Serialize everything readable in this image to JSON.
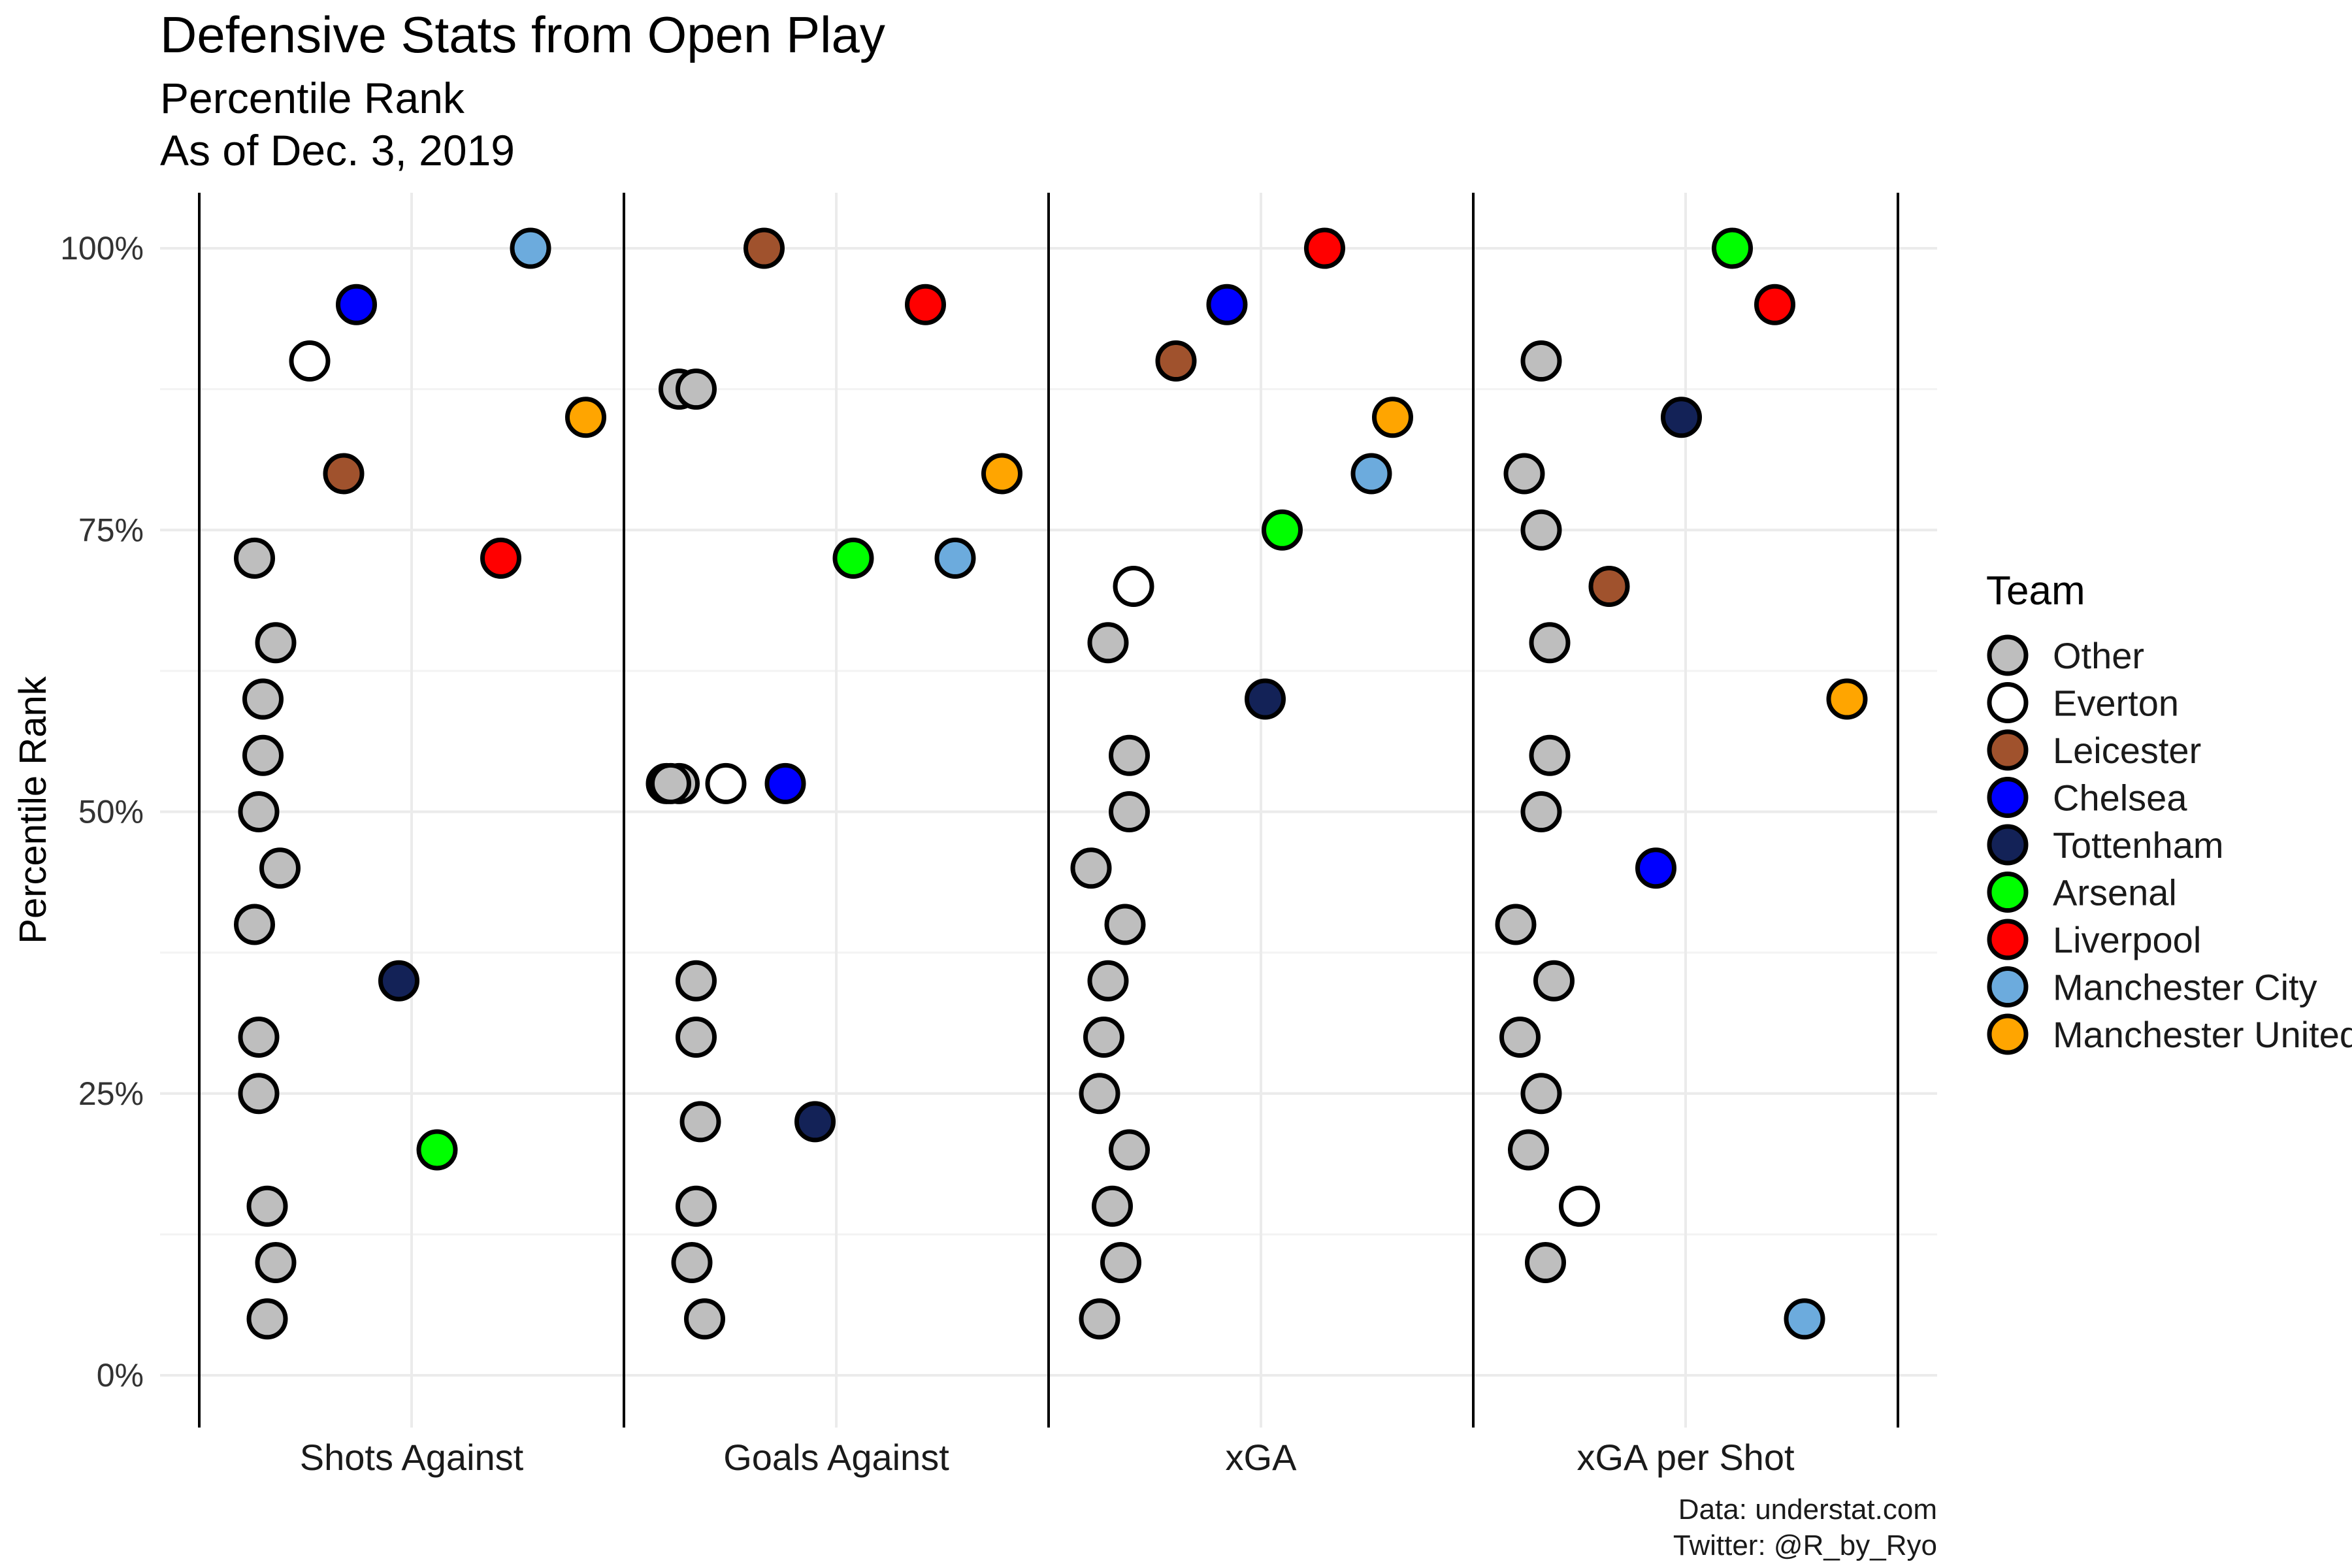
{
  "chart_data": {
    "type": "scatter",
    "title": "Defensive Stats from Open Play",
    "subtitle_lines": [
      "Percentile Rank",
      "As of Dec. 3, 2019"
    ],
    "ylabel": "Percentile Rank",
    "ylim": [
      0,
      100
    ],
    "y_ticks": [
      "0%",
      "25%",
      "50%",
      "75%",
      "100%"
    ],
    "categories": [
      "Shots Against",
      "Goals Against",
      "xGA",
      "xGA per Shot"
    ],
    "legend": {
      "title": "Team",
      "placement": "right",
      "teams": [
        {
          "name": "Other",
          "color": "#bebebe"
        },
        {
          "name": "Everton",
          "color": "#ffffff"
        },
        {
          "name": "Leicester",
          "color": "#a0522d"
        },
        {
          "name": "Chelsea",
          "color": "#0000ff"
        },
        {
          "name": "Tottenham",
          "color": "#132257"
        },
        {
          "name": "Arsenal",
          "color": "#00ff00"
        },
        {
          "name": "Liverpool",
          "color": "#ff0000"
        },
        {
          "name": "Manchester City",
          "color": "#6cabdd"
        },
        {
          "name": "Manchester United",
          "color": "#ffa500"
        }
      ]
    },
    "points": [
      {
        "category": "Shots Against",
        "team": "Manchester City",
        "y": 100,
        "jitter": 0.28
      },
      {
        "category": "Shots Against",
        "team": "Chelsea",
        "y": 95,
        "jitter": -0.13
      },
      {
        "category": "Shots Against",
        "team": "Everton",
        "y": 90,
        "jitter": -0.24
      },
      {
        "category": "Shots Against",
        "team": "Manchester United",
        "y": 85,
        "jitter": 0.41
      },
      {
        "category": "Shots Against",
        "team": "Leicester",
        "y": 80,
        "jitter": -0.16
      },
      {
        "category": "Shots Against",
        "team": "Other",
        "y": 72.5,
        "jitter": -0.37
      },
      {
        "category": "Shots Against",
        "team": "Liverpool",
        "y": 72.5,
        "jitter": 0.21
      },
      {
        "category": "Shots Against",
        "team": "Other",
        "y": 65,
        "jitter": -0.32
      },
      {
        "category": "Shots Against",
        "team": "Other",
        "y": 60,
        "jitter": -0.35
      },
      {
        "category": "Shots Against",
        "team": "Other",
        "y": 55,
        "jitter": -0.35
      },
      {
        "category": "Shots Against",
        "team": "Other",
        "y": 50,
        "jitter": -0.36
      },
      {
        "category": "Shots Against",
        "team": "Other",
        "y": 45,
        "jitter": -0.31
      },
      {
        "category": "Shots Against",
        "team": "Other",
        "y": 40,
        "jitter": -0.37
      },
      {
        "category": "Shots Against",
        "team": "Tottenham",
        "y": 35,
        "jitter": -0.03
      },
      {
        "category": "Shots Against",
        "team": "Other",
        "y": 30,
        "jitter": -0.36
      },
      {
        "category": "Shots Against",
        "team": "Other",
        "y": 25,
        "jitter": -0.36
      },
      {
        "category": "Shots Against",
        "team": "Arsenal",
        "y": 20,
        "jitter": 0.06
      },
      {
        "category": "Shots Against",
        "team": "Other",
        "y": 15,
        "jitter": -0.34
      },
      {
        "category": "Shots Against",
        "team": "Other",
        "y": 10,
        "jitter": -0.32
      },
      {
        "category": "Shots Against",
        "team": "Other",
        "y": 5,
        "jitter": -0.34
      },
      {
        "category": "Goals Against",
        "team": "Leicester",
        "y": 100,
        "jitter": -0.17
      },
      {
        "category": "Goals Against",
        "team": "Liverpool",
        "y": 95,
        "jitter": 0.21
      },
      {
        "category": "Goals Against",
        "team": "Other",
        "y": 87.5,
        "jitter": -0.37
      },
      {
        "category": "Goals Against",
        "team": "Other",
        "y": 87.5,
        "jitter": -0.33
      },
      {
        "category": "Goals Against",
        "team": "Manchester United",
        "y": 80,
        "jitter": 0.39
      },
      {
        "category": "Goals Against",
        "team": "Arsenal",
        "y": 72.5,
        "jitter": 0.04
      },
      {
        "category": "Goals Against",
        "team": "Manchester City",
        "y": 72.5,
        "jitter": 0.28
      },
      {
        "category": "Goals Against",
        "team": "Other",
        "y": 52.5,
        "jitter": -0.4
      },
      {
        "category": "Goals Against",
        "team": "Other",
        "y": 52.5,
        "jitter": -0.37
      },
      {
        "category": "Goals Against",
        "team": "Other",
        "y": 52.5,
        "jitter": -0.39
      },
      {
        "category": "Goals Against",
        "team": "Everton",
        "y": 52.5,
        "jitter": -0.26
      },
      {
        "category": "Goals Against",
        "team": "Chelsea",
        "y": 52.5,
        "jitter": -0.12
      },
      {
        "category": "Goals Against",
        "team": "Other",
        "y": 35,
        "jitter": -0.33
      },
      {
        "category": "Goals Against",
        "team": "Other",
        "y": 30,
        "jitter": -0.33
      },
      {
        "category": "Goals Against",
        "team": "Other",
        "y": 22.5,
        "jitter": -0.32
      },
      {
        "category": "Goals Against",
        "team": "Tottenham",
        "y": 22.5,
        "jitter": -0.05
      },
      {
        "category": "Goals Against",
        "team": "Other",
        "y": 15,
        "jitter": -0.33
      },
      {
        "category": "Goals Against",
        "team": "Other",
        "y": 10,
        "jitter": -0.34
      },
      {
        "category": "Goals Against",
        "team": "Other",
        "y": 5,
        "jitter": -0.31
      },
      {
        "category": "xGA",
        "team": "Liverpool",
        "y": 100,
        "jitter": 0.15
      },
      {
        "category": "xGA",
        "team": "Chelsea",
        "y": 95,
        "jitter": -0.08
      },
      {
        "category": "xGA",
        "team": "Leicester",
        "y": 90,
        "jitter": -0.2
      },
      {
        "category": "xGA",
        "team": "Manchester United",
        "y": 85,
        "jitter": 0.31
      },
      {
        "category": "xGA",
        "team": "Manchester City",
        "y": 80,
        "jitter": 0.26
      },
      {
        "category": "xGA",
        "team": "Arsenal",
        "y": 75,
        "jitter": 0.05
      },
      {
        "category": "xGA",
        "team": "Everton",
        "y": 70,
        "jitter": -0.3
      },
      {
        "category": "xGA",
        "team": "Other",
        "y": 65,
        "jitter": -0.36
      },
      {
        "category": "xGA",
        "team": "Tottenham",
        "y": 60,
        "jitter": 0.01
      },
      {
        "category": "xGA",
        "team": "Other",
        "y": 55,
        "jitter": -0.31
      },
      {
        "category": "xGA",
        "team": "Other",
        "y": 50,
        "jitter": -0.31
      },
      {
        "category": "xGA",
        "team": "Other",
        "y": 45,
        "jitter": -0.4
      },
      {
        "category": "xGA",
        "team": "Other",
        "y": 40,
        "jitter": -0.32
      },
      {
        "category": "xGA",
        "team": "Other",
        "y": 35,
        "jitter": -0.36
      },
      {
        "category": "xGA",
        "team": "Other",
        "y": 30,
        "jitter": -0.37
      },
      {
        "category": "xGA",
        "team": "Other",
        "y": 25,
        "jitter": -0.38
      },
      {
        "category": "xGA",
        "team": "Other",
        "y": 20,
        "jitter": -0.31
      },
      {
        "category": "xGA",
        "team": "Other",
        "y": 15,
        "jitter": -0.35
      },
      {
        "category": "xGA",
        "team": "Other",
        "y": 10,
        "jitter": -0.33
      },
      {
        "category": "xGA",
        "team": "Other",
        "y": 5,
        "jitter": -0.38
      },
      {
        "category": "xGA per Shot",
        "team": "Arsenal",
        "y": 100,
        "jitter": 0.11
      },
      {
        "category": "xGA per Shot",
        "team": "Liverpool",
        "y": 95,
        "jitter": 0.21
      },
      {
        "category": "xGA per Shot",
        "team": "Other",
        "y": 90,
        "jitter": -0.34
      },
      {
        "category": "xGA per Shot",
        "team": "Tottenham",
        "y": 85,
        "jitter": -0.01
      },
      {
        "category": "xGA per Shot",
        "team": "Other",
        "y": 80,
        "jitter": -0.38
      },
      {
        "category": "xGA per Shot",
        "team": "Other",
        "y": 75,
        "jitter": -0.34
      },
      {
        "category": "xGA per Shot",
        "team": "Leicester",
        "y": 70,
        "jitter": -0.18
      },
      {
        "category": "xGA per Shot",
        "team": "Other",
        "y": 65,
        "jitter": -0.32
      },
      {
        "category": "xGA per Shot",
        "team": "Manchester United",
        "y": 60,
        "jitter": 0.38
      },
      {
        "category": "xGA per Shot",
        "team": "Other",
        "y": 55,
        "jitter": -0.32
      },
      {
        "category": "xGA per Shot",
        "team": "Other",
        "y": 50,
        "jitter": -0.34
      },
      {
        "category": "xGA per Shot",
        "team": "Chelsea",
        "y": 45,
        "jitter": -0.07
      },
      {
        "category": "xGA per Shot",
        "team": "Other",
        "y": 40,
        "jitter": -0.4
      },
      {
        "category": "xGA per Shot",
        "team": "Other",
        "y": 35,
        "jitter": -0.31
      },
      {
        "category": "xGA per Shot",
        "team": "Other",
        "y": 30,
        "jitter": -0.39
      },
      {
        "category": "xGA per Shot",
        "team": "Other",
        "y": 25,
        "jitter": -0.34
      },
      {
        "category": "xGA per Shot",
        "team": "Other",
        "y": 20,
        "jitter": -0.37
      },
      {
        "category": "xGA per Shot",
        "team": "Everton",
        "y": 15,
        "jitter": -0.25
      },
      {
        "category": "xGA per Shot",
        "team": "Other",
        "y": 10,
        "jitter": -0.33
      },
      {
        "category": "xGA per Shot",
        "team": "Manchester City",
        "y": 5,
        "jitter": 0.28
      }
    ],
    "caption_lines": [
      "Data: understat.com",
      "Twitter: @R_by_Ryo"
    ],
    "grid": true
  }
}
